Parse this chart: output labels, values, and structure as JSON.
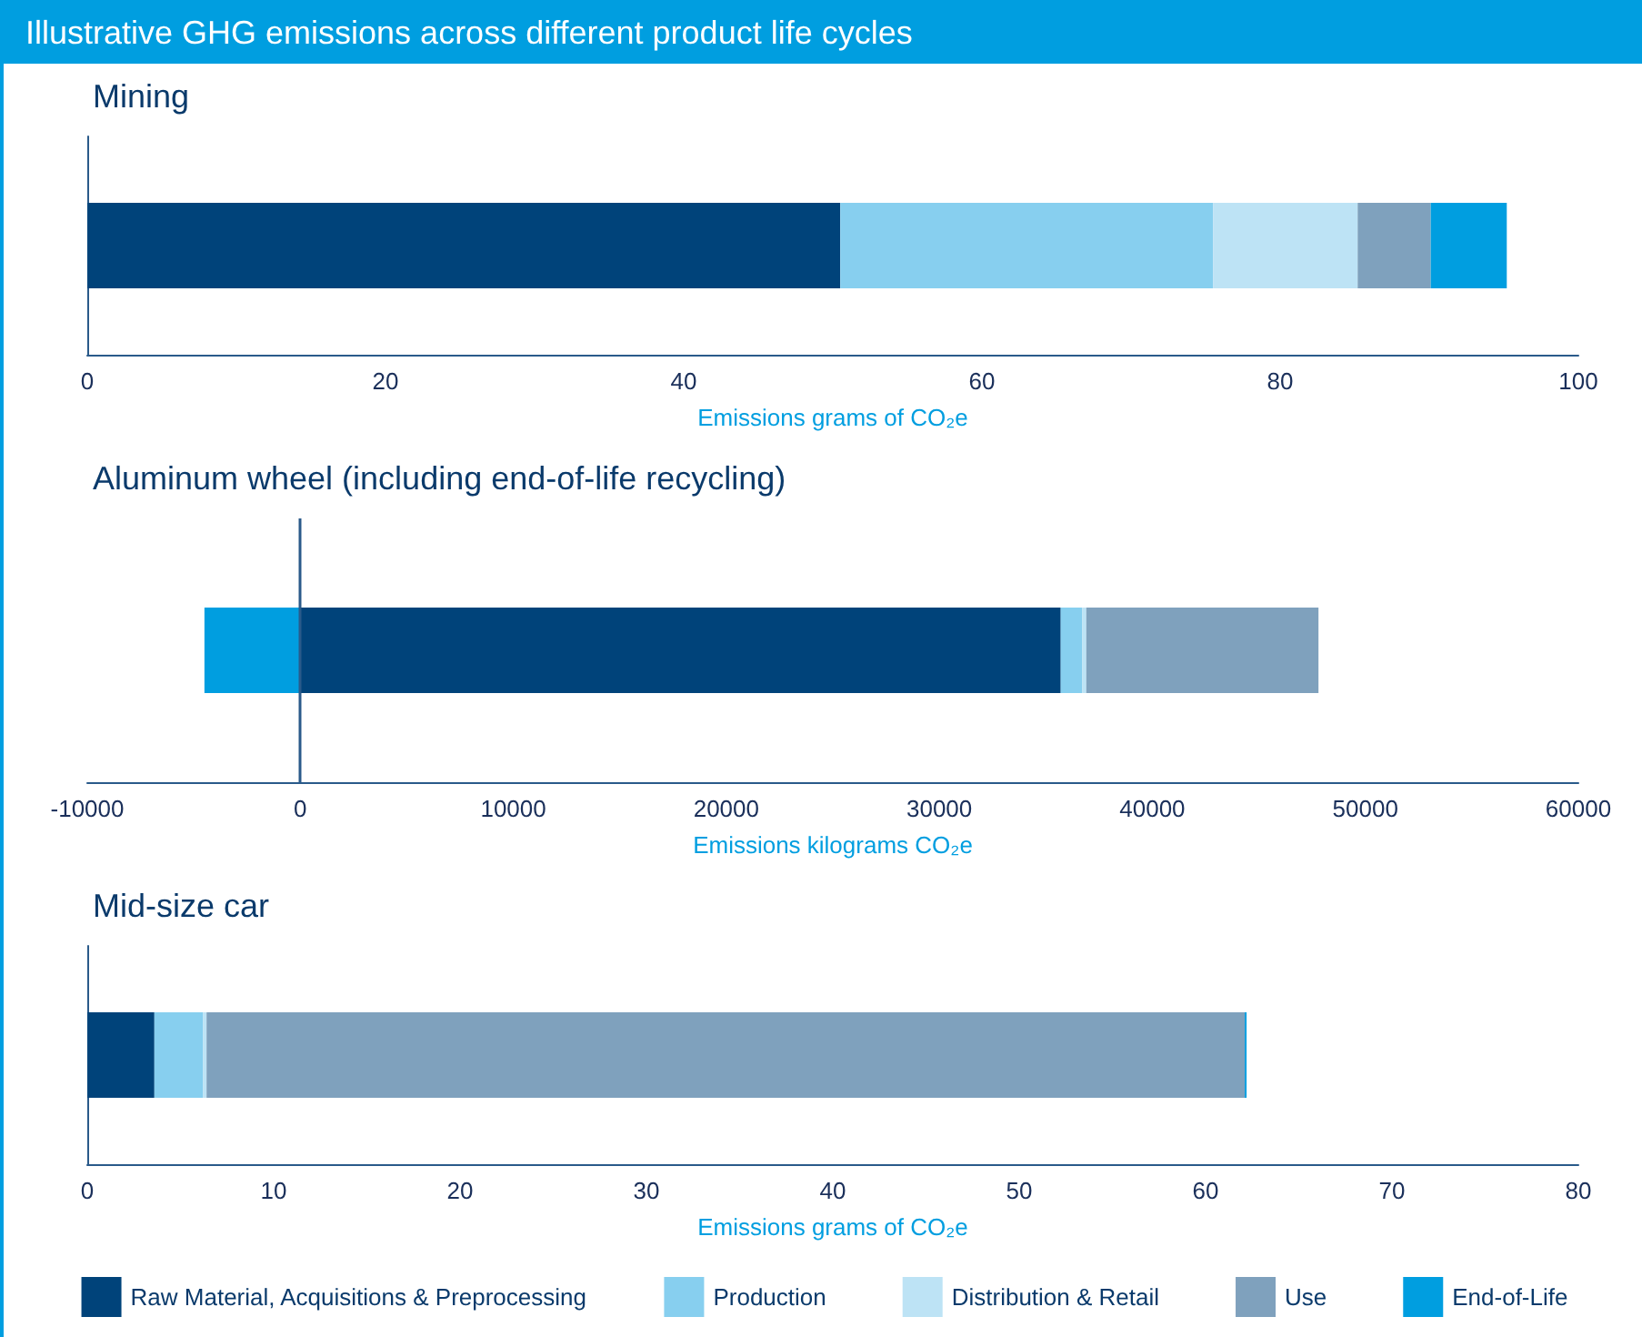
{
  "chart_data": [
    {
      "type": "bar",
      "orientation": "horizontal",
      "stacked": true,
      "title": "Mining",
      "annotations": [
        "Illustrative GHG emissions across different product life cycles"
      ],
      "xlabel": "Emissions grams of CO₂e",
      "categories": [
        null
      ],
      "xlim": [
        0,
        100
      ],
      "xticks": [
        0,
        20,
        40,
        60,
        80,
        100
      ],
      "grid": false,
      "legend": false,
      "series": [
        {
          "color": "#00437a",
          "values": [
            50.5
          ]
        },
        {
          "color": "#87cfef",
          "values": [
            25
          ]
        },
        {
          "color": "#bde3f5",
          "values": [
            9.7
          ]
        },
        {
          "color": "#7fa1bd",
          "values": [
            4.9
          ]
        },
        {
          "color": "#009ee0",
          "values": [
            5.1
          ]
        }
      ]
    },
    {
      "type": "bar",
      "orientation": "horizontal",
      "stacked": true,
      "title": "Aluminum wheel (including end-of-life recycling)",
      "xlabel": "Emissions kilograms CO₂e",
      "categories": [
        null
      ],
      "xlim": [
        -10000,
        60000
      ],
      "xticks": [
        -10000,
        0,
        10000,
        20000,
        30000,
        40000,
        50000,
        60000
      ],
      "grid": false,
      "legend": false,
      "ref_lines": [
        {
          "axis": "x",
          "value": 0,
          "color": "#2a5a8a"
        }
      ],
      "series": [
        {
          "color": "#00437a",
          "values": [
            35700
          ]
        },
        {
          "color": "#87cfef",
          "values": [
            1000
          ]
        },
        {
          "color": "#bde3f5",
          "values": [
            200
          ]
        },
        {
          "color": "#7fa1bd",
          "values": [
            10900
          ]
        },
        {
          "color": "#009ee0",
          "values": [
            -4500
          ]
        }
      ]
    },
    {
      "type": "bar",
      "orientation": "horizontal",
      "stacked": true,
      "title": "Mid-size car",
      "xlabel": "Emissions grams of CO₂e",
      "categories": [
        null
      ],
      "xlim": [
        0,
        80
      ],
      "xticks": [
        0,
        10,
        20,
        30,
        40,
        50,
        60,
        70,
        80
      ],
      "grid": false,
      "legend": "bottom",
      "series": [
        {
          "name": "Raw Material, Acquisitions & Preprocessing",
          "color": "#00437a",
          "values": [
            3.6
          ]
        },
        {
          "name": "Production",
          "color": "#87cfef",
          "values": [
            2.6
          ]
        },
        {
          "name": "Distribution & Retail",
          "color": "#bde3f5",
          "values": [
            0.2
          ]
        },
        {
          "name": "Use",
          "color": "#7fa1bd",
          "values": [
            55.7
          ]
        },
        {
          "name": "End-of-Life",
          "color": "#009ee0",
          "values": [
            0.1
          ]
        }
      ]
    }
  ]
}
